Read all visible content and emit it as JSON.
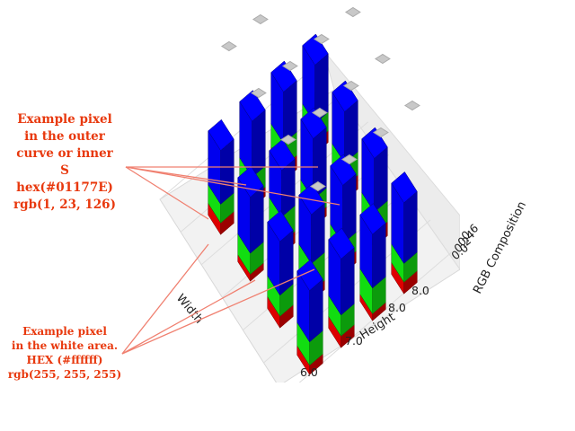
{
  "chart_data": {
    "type": "bar3d",
    "zlabel": "RGB Composition",
    "xlabel": "Width",
    "ylabel": "Height",
    "height_ticks": [
      "6.0",
      "7.0",
      "8.0"
    ],
    "width_tick": "8.0",
    "partial_ticks": [
      "0.0",
      "0.2",
      "0.4",
      "0.6"
    ],
    "stacked_series": [
      {
        "name": "R",
        "color": "#dd0000"
      },
      {
        "name": "G",
        "color": "#11dd11"
      },
      {
        "name": "B",
        "color": "#0000ee"
      }
    ],
    "bars": [
      {
        "x": 1,
        "y": 1,
        "r": 0.5,
        "g": 0.8,
        "b": 2.3
      },
      {
        "x": 1,
        "y": 2,
        "r": 0.4,
        "g": 0.9,
        "b": 2.4
      },
      {
        "x": 1,
        "y": 3,
        "r": 0.6,
        "g": 1.0,
        "b": 2.2
      },
      {
        "x": 1,
        "y": 4,
        "r": 0.5,
        "g": 0.8,
        "b": 2.5
      },
      {
        "x": 2,
        "y": 1,
        "r": 0.3,
        "g": 0.9,
        "b": 2.4
      },
      {
        "x": 2,
        "y": 2,
        "r": 0.5,
        "g": 1.1,
        "b": 2.0
      },
      {
        "x": 2,
        "y": 3,
        "r": 0.4,
        "g": 0.8,
        "b": 2.6
      },
      {
        "x": 2,
        "y": 4,
        "r": 0.6,
        "g": 1.0,
        "b": 2.2
      },
      {
        "x": 3,
        "y": 1,
        "r": 0.5,
        "g": 0.9,
        "b": 2.3
      },
      {
        "x": 3,
        "y": 2,
        "r": 0.4,
        "g": 1.2,
        "b": 2.1
      },
      {
        "x": 3,
        "y": 3,
        "r": 0.5,
        "g": 0.8,
        "b": 2.5
      },
      {
        "x": 3,
        "y": 4,
        "r": 0.6,
        "g": 0.9,
        "b": 2.3
      },
      {
        "x": 4,
        "y": 1,
        "r": 0.4,
        "g": 1.0,
        "b": 2.2
      },
      {
        "x": 4,
        "y": 2,
        "r": 0.5,
        "g": 0.9,
        "b": 2.4
      },
      {
        "x": 4,
        "y": 3,
        "r": 0.3,
        "g": 1.1,
        "b": 2.3
      },
      {
        "x": 4,
        "y": 4,
        "r": 0.5,
        "g": 0.8,
        "b": 2.6
      }
    ]
  },
  "annotations": {
    "outer_pixel": [
      "Example pixel",
      "in the outer",
      "curve or inner",
      "S",
      "hex(#01177E)",
      "rgb(1, 23, 126)"
    ],
    "white_pixel": [
      "Example pixel",
      "in the white area.",
      "HEX (#ffffff)",
      "rgb(255, 255, 255)"
    ],
    "color": "#e8380d",
    "arrow_color": "#f08070"
  }
}
